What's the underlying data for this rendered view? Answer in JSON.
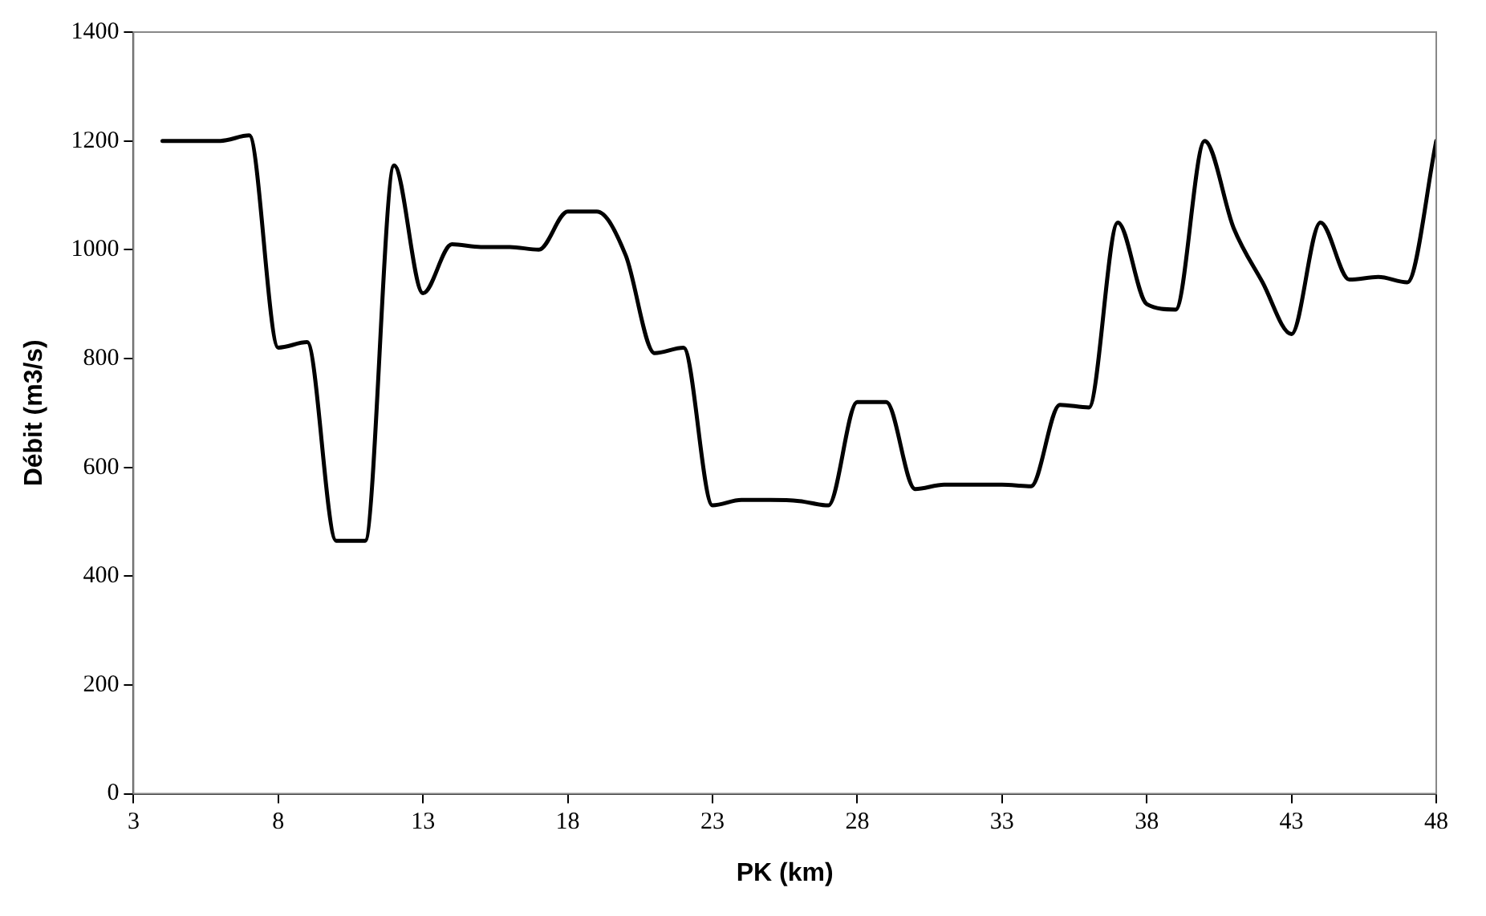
{
  "chart_data": {
    "type": "line",
    "xlabel": "PK (km)",
    "ylabel": "Débit (m3/s)",
    "x": [
      4,
      5,
      6,
      7,
      8,
      9,
      10,
      11,
      12,
      13,
      14,
      15,
      16,
      17,
      18,
      19,
      20,
      21,
      22,
      23,
      24,
      25,
      26,
      27,
      28,
      29,
      30,
      31,
      32,
      33,
      34,
      35,
      36,
      37,
      38,
      39,
      40,
      41,
      42,
      43,
      44,
      45,
      46,
      47,
      48
    ],
    "series": [
      {
        "color": "#000000",
        "values": [
          1200,
          1200,
          1200,
          1210,
          820,
          830,
          465,
          465,
          1155,
          920,
          1010,
          1005,
          1005,
          1000,
          1070,
          1070,
          990,
          810,
          820,
          530,
          540,
          540,
          538,
          530,
          720,
          720,
          560,
          568,
          568,
          568,
          565,
          715,
          710,
          1050,
          900,
          890,
          1200,
          1040,
          940,
          845,
          1050,
          945,
          950,
          940,
          1200
        ]
      }
    ],
    "xlim": [
      3,
      48
    ],
    "xticks": [
      3,
      8,
      13,
      18,
      23,
      28,
      33,
      38,
      43,
      48
    ],
    "ylim": [
      0,
      1400
    ],
    "yticks": [
      0,
      200,
      400,
      600,
      800,
      1000,
      1200,
      1400
    ],
    "grid": false,
    "legend": false,
    "marker": "none",
    "line_style": "solid"
  }
}
